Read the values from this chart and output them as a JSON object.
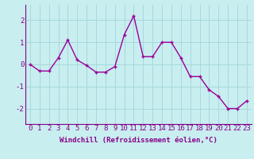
{
  "x": [
    0,
    1,
    2,
    3,
    4,
    5,
    6,
    7,
    8,
    9,
    10,
    11,
    12,
    13,
    14,
    15,
    16,
    17,
    18,
    19,
    20,
    21,
    22,
    23
  ],
  "y": [
    0.0,
    -0.3,
    -0.3,
    0.3,
    1.1,
    0.2,
    -0.05,
    -0.35,
    -0.35,
    -0.1,
    1.35,
    2.2,
    0.35,
    0.35,
    1.0,
    1.0,
    0.3,
    -0.55,
    -0.55,
    -1.15,
    -1.45,
    -2.0,
    -2.0,
    -1.65
  ],
  "line_color": "#990099",
  "marker": "+",
  "marker_size": 3,
  "linewidth": 1.0,
  "bg_color": "#c8eef0",
  "grid_color": "#a8d8dc",
  "xlabel": "Windchill (Refroidissement éolien,°C)",
  "xlabel_fontsize": 6.5,
  "xtick_labels": [
    "0",
    "1",
    "2",
    "3",
    "4",
    "5",
    "6",
    "7",
    "8",
    "9",
    "10",
    "11",
    "12",
    "13",
    "14",
    "15",
    "16",
    "17",
    "18",
    "19",
    "20",
    "21",
    "22",
    "23"
  ],
  "ytick_labels": [
    "-2",
    "-1",
    "0",
    "1",
    "2"
  ],
  "yticks": [
    -2,
    -1,
    0,
    1,
    2
  ],
  "ylim": [
    -2.7,
    2.7
  ],
  "xlim": [
    -0.5,
    23.5
  ],
  "tick_fontsize": 6.5,
  "axis_color": "#880088",
  "spine_color": "#880088"
}
